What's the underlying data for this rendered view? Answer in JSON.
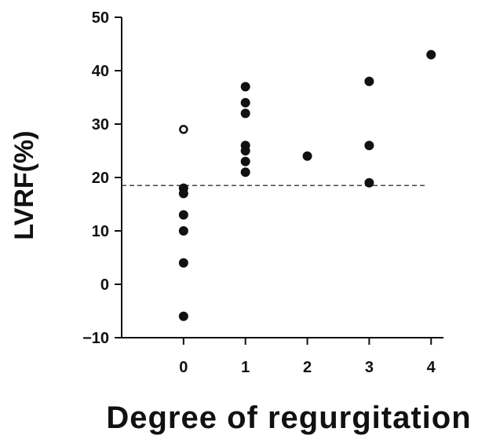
{
  "chart_data": {
    "type": "scatter",
    "xlabel": "Degree of regurgitation",
    "ylabel": "LVRF(%)",
    "xlim": [
      -1,
      4.2
    ],
    "ylim": [
      -10,
      50
    ],
    "xticks": [
      0,
      1,
      2,
      3,
      4
    ],
    "yticks": [
      -10,
      0,
      10,
      20,
      30,
      40,
      50
    ],
    "xtick_labels": [
      "0",
      "1",
      "2",
      "3",
      "4"
    ],
    "ytick_labels": [
      "−10",
      "0",
      "10",
      "20",
      "30",
      "40",
      "50"
    ],
    "threshold": 18.5,
    "grid": false,
    "points": [
      {
        "x": 0,
        "y": 29,
        "filled": false
      },
      {
        "x": 0,
        "y": 18,
        "filled": true
      },
      {
        "x": 0,
        "y": 17,
        "filled": true
      },
      {
        "x": 0,
        "y": 13,
        "filled": true
      },
      {
        "x": 0,
        "y": 10,
        "filled": true
      },
      {
        "x": 0,
        "y": 4,
        "filled": true
      },
      {
        "x": 0,
        "y": -6,
        "filled": true
      },
      {
        "x": 1,
        "y": 37,
        "filled": true
      },
      {
        "x": 1,
        "y": 34,
        "filled": true
      },
      {
        "x": 1,
        "y": 32,
        "filled": true
      },
      {
        "x": 1,
        "y": 26,
        "filled": true
      },
      {
        "x": 1,
        "y": 25,
        "filled": true
      },
      {
        "x": 1,
        "y": 23,
        "filled": true
      },
      {
        "x": 1,
        "y": 21,
        "filled": true
      },
      {
        "x": 2,
        "y": 24,
        "filled": true
      },
      {
        "x": 3,
        "y": 38,
        "filled": true
      },
      {
        "x": 3,
        "y": 26,
        "filled": true
      },
      {
        "x": 3,
        "y": 19,
        "filled": true
      },
      {
        "x": 4,
        "y": 43,
        "filled": true
      }
    ]
  }
}
